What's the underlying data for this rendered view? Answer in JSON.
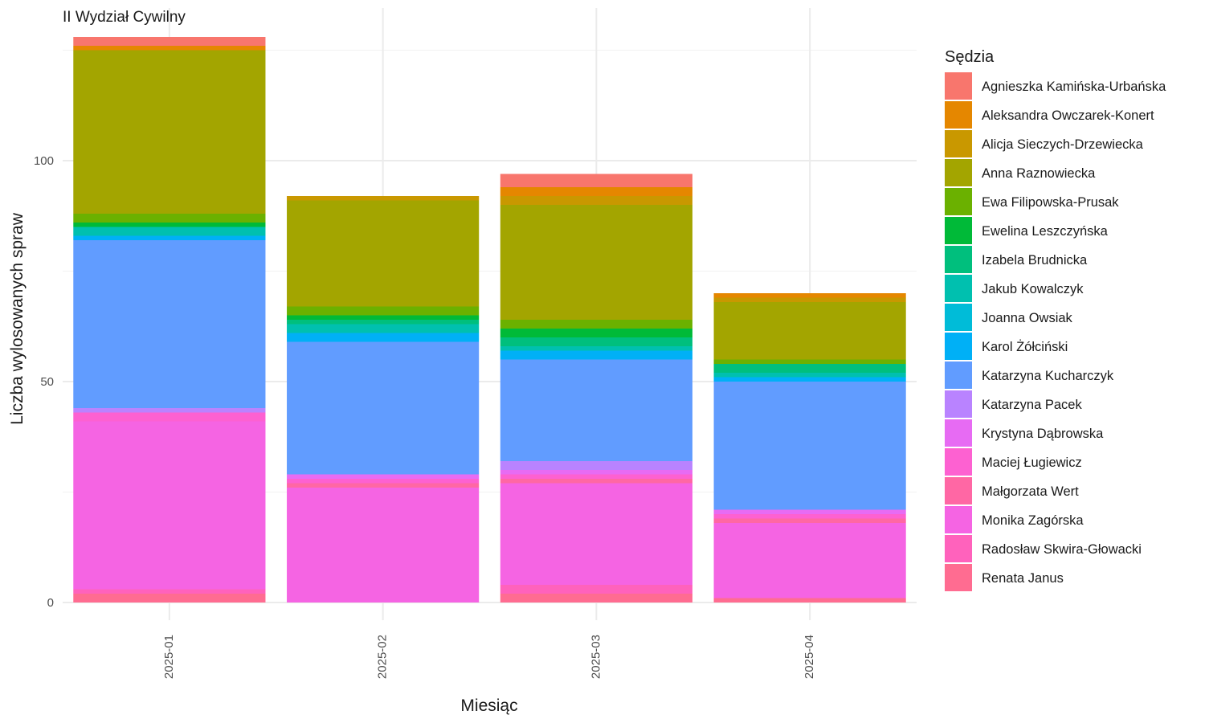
{
  "chart_data": {
    "type": "bar",
    "stacked": true,
    "title": "II Wydział Cywilny",
    "xlabel": "Miesiąc",
    "ylabel": "Liczba wylosowanych spraw",
    "categories": [
      "2025-01",
      "2025-02",
      "2025-03",
      "2025-04"
    ],
    "ylim": [
      0,
      135
    ],
    "yticks": [
      0,
      50,
      100
    ],
    "grid": true,
    "legend_position": "right",
    "legend_title": "Sędzia",
    "series": [
      {
        "name": "Agnieszka Kamińska-Urbańska",
        "color": "#F8766D",
        "values": [
          2,
          0,
          3,
          0
        ]
      },
      {
        "name": "Aleksandra Owczarek-Konert",
        "color": "#E58700",
        "values": [
          1,
          0,
          2,
          1
        ]
      },
      {
        "name": "Alicja Sieczych-Drzewiecka",
        "color": "#C99800",
        "values": [
          0,
          1,
          2,
          1
        ]
      },
      {
        "name": "Anna Raznowiecka",
        "color": "#A3A500",
        "values": [
          37,
          24,
          26,
          13
        ]
      },
      {
        "name": "Ewa Filipowska-Prusak",
        "color": "#6BB100",
        "values": [
          2,
          2,
          2,
          1
        ]
      },
      {
        "name": "Ewelina Leszczyńska",
        "color": "#00BA38",
        "values": [
          1,
          1,
          2,
          0
        ]
      },
      {
        "name": "Izabela Brudnicka",
        "color": "#00BF7D",
        "values": [
          0,
          1,
          2,
          2
        ]
      },
      {
        "name": "Jakub Kowalczyk",
        "color": "#00C0AF",
        "values": [
          2,
          2,
          1,
          1
        ]
      },
      {
        "name": "Joanna Owsiak",
        "color": "#00BCD8",
        "values": [
          0,
          0,
          0,
          0
        ]
      },
      {
        "name": "Karol Żółciński",
        "color": "#00B0F6",
        "values": [
          1,
          2,
          2,
          1
        ]
      },
      {
        "name": "Katarzyna Kucharczyk",
        "color": "#619CFF",
        "values": [
          38,
          30,
          23,
          29
        ]
      },
      {
        "name": "Katarzyna Pacek",
        "color": "#B983FF",
        "values": [
          1,
          0,
          2,
          0
        ]
      },
      {
        "name": "Krystyna Dąbrowska",
        "color": "#E76BF3",
        "values": [
          0,
          1,
          1,
          1
        ]
      },
      {
        "name": "Maciej Ługiewicz",
        "color": "#FD61D1",
        "values": [
          2,
          1,
          1,
          1
        ]
      },
      {
        "name": "Małgorzata Wert",
        "color": "#FF67A4",
        "values": [
          0,
          1,
          1,
          1
        ]
      },
      {
        "name": "Monika Zagórska",
        "color": "#F564E3",
        "values": [
          38,
          26,
          23,
          17
        ]
      },
      {
        "name": "Radosław Skwira-Głowacki",
        "color": "#FF62BC",
        "values": [
          1,
          0,
          2,
          0
        ]
      },
      {
        "name": "Renata Janus",
        "color": "#FF6C91",
        "values": [
          2,
          0,
          2,
          1
        ]
      }
    ]
  }
}
